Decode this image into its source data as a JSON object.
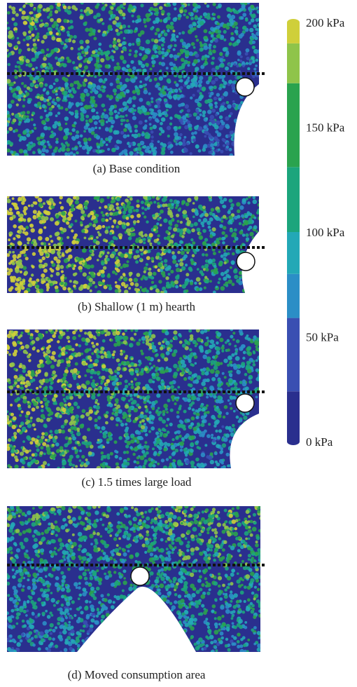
{
  "panels": [
    {
      "caption": "(a) Base condition"
    },
    {
      "caption": "(b) Shallow (1 m) hearth"
    },
    {
      "caption": "(c) 1.5 times large load"
    },
    {
      "caption": "(d) Moved consumption area"
    }
  ],
  "colorbar": {
    "ticks": [
      {
        "value": 200,
        "label": "200 kPa"
      },
      {
        "value": 150,
        "label": "150 kPa"
      },
      {
        "value": 100,
        "label": "100 kPa"
      },
      {
        "value": 50,
        "label": "50 kPa"
      },
      {
        "value": 0,
        "label": "0 kPa"
      }
    ],
    "lim": [
      0,
      200
    ],
    "bands": [
      {
        "from": 0,
        "to": 24,
        "color": "#2a2f8e"
      },
      {
        "from": 24,
        "to": 59,
        "color": "#3a4fb2"
      },
      {
        "from": 59,
        "to": 80,
        "color": "#2b8ec6"
      },
      {
        "from": 80,
        "to": 100,
        "color": "#23a8b6"
      },
      {
        "from": 100,
        "to": 131,
        "color": "#1ca57c"
      },
      {
        "from": 131,
        "to": 171,
        "color": "#2aa34e"
      },
      {
        "from": 171,
        "to": 190,
        "color": "#8fc44a"
      },
      {
        "from": 190,
        "to": 200,
        "color": "#cfcf3a"
      }
    ]
  }
}
